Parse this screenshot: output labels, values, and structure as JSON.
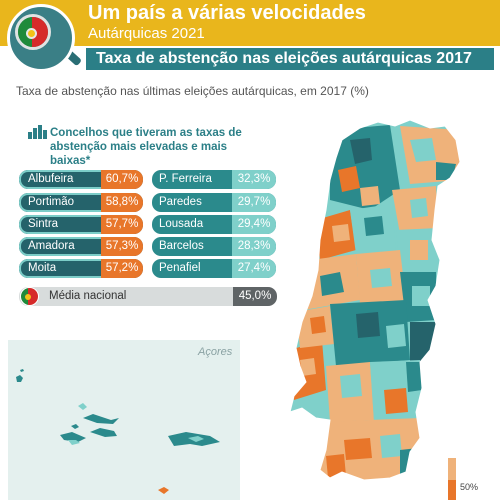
{
  "header": {
    "title": "Um país a várias velocidades",
    "subtitle": "Autárquicas 2021",
    "banner": "Taxa de abstenção nas eleições autárquicas 2017"
  },
  "description": "Taxa de abstenção nas últimas eleições autárquicas, em 2017 (%)",
  "ranking": {
    "title": "Concelhos que tiveram as taxas de abstenção mais elevadas e mais baixas*",
    "highest": [
      {
        "name": "Albufeira",
        "value": "60,7%"
      },
      {
        "name": "Portimão",
        "value": "58,8%"
      },
      {
        "name": "Sintra",
        "value": "57,7%"
      },
      {
        "name": "Amadora",
        "value": "57,3%"
      },
      {
        "name": "Moita",
        "value": "57,2%"
      }
    ],
    "lowest": [
      {
        "name": "P. Ferreira",
        "value": "32,3%"
      },
      {
        "name": "Paredes",
        "value": "29,7%"
      },
      {
        "name": "Lousada",
        "value": "29,4%"
      },
      {
        "name": "Barcelos",
        "value": "28,3%"
      },
      {
        "name": "Penafiel",
        "value": "27,4%"
      }
    ]
  },
  "national": {
    "label": "Média nacional",
    "value": "45,0%"
  },
  "azores_label": "Açores",
  "legend": {
    "label": "50%"
  },
  "colors": {
    "yellow": "#e9b61c",
    "teal": "#2b7f87",
    "high_orange": "#e8762a",
    "low_teal": "#7fd0ca",
    "map_light_orange": "#efb27a",
    "map_light_teal": "#7fd0ca"
  },
  "icons": {
    "badge": "portugal-flag-magnifier-icon",
    "ranking": "bar-chart-icon",
    "national": "portugal-flag-icon"
  }
}
